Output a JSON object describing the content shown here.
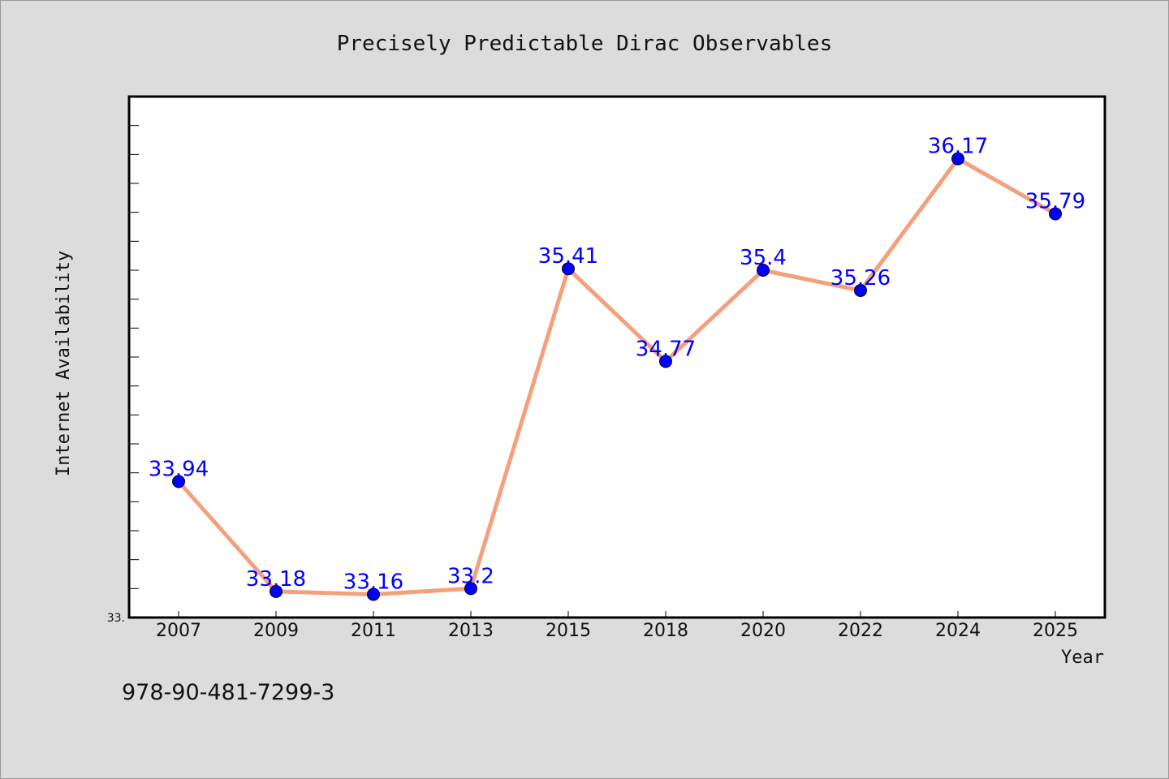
{
  "chart_data": {
    "type": "line",
    "title": "Precisely Predictable Dirac Observables",
    "xlabel": "Year",
    "ylabel": "Internet Availability",
    "categories": [
      "2007",
      "2009",
      "2011",
      "2013",
      "2015",
      "2018",
      "2020",
      "2022",
      "2024",
      "2025"
    ],
    "series": [
      {
        "values": [
          33.94,
          33.18,
          33.16,
          33.2,
          35.41,
          34.77,
          35.4,
          35.26,
          36.17,
          35.79
        ],
        "line_color": "#f4a07c",
        "marker_color": "#0000ff"
      }
    ],
    "data_labels": [
      "33.94",
      "33.18",
      "33.16",
      "33.2",
      "35.41",
      "34.77",
      "35.4",
      "35.26",
      "36.17",
      "35.79"
    ],
    "ylim": [
      33.0,
      36.6
    ],
    "ytick_labels": [
      "33."
    ],
    "grid": false,
    "legend": "none",
    "background_color": "#dcdcdc",
    "plot_background_color": "#ffffff"
  },
  "footer": {
    "isbn": "978-90-481-7299-3"
  }
}
